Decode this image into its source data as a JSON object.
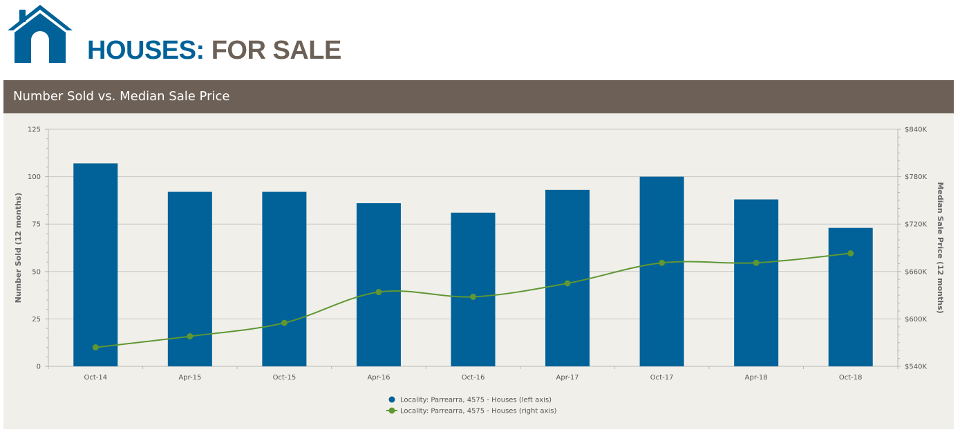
{
  "header": {
    "brand_part1": "HOUSES:",
    "brand_part2": "FOR SALE",
    "icon": "house-icon",
    "colors": {
      "blue": "#006298",
      "brown": "#6d6157"
    }
  },
  "banner": {
    "title": "Number Sold vs. Median Sale Price"
  },
  "chart_data": {
    "type": "bar",
    "categories": [
      "Oct-14",
      "Apr-15",
      "Oct-15",
      "Apr-16",
      "Oct-16",
      "Apr-17",
      "Oct-17",
      "Apr-18",
      "Oct-18"
    ],
    "series": [
      {
        "name": "Locality: Parrearra, 4575 - Houses (left axis)",
        "type": "bar",
        "axis": "left",
        "color": "#006298",
        "values": [
          107,
          92,
          92,
          86,
          81,
          93,
          100,
          88,
          73
        ]
      },
      {
        "name": "Locality: Parrearra, 4575 - Houses (right axis)",
        "type": "line",
        "axis": "right",
        "color": "#5f9732",
        "values": [
          564000,
          578000,
          595000,
          634000,
          628000,
          645000,
          671000,
          671000,
          683000
        ]
      }
    ],
    "ylabel": "Number Sold (12 months)",
    "ylabel_right": "Median Sale Price (12 months)",
    "ylim": [
      0,
      125
    ],
    "ylim_right": [
      540000,
      840000
    ],
    "yticks": [
      "0",
      "25",
      "50",
      "75",
      "100",
      "125"
    ],
    "yticks_right": [
      "$540K",
      "$600K",
      "$660K",
      "$720K",
      "$780K",
      "$840K"
    ],
    "grid": true,
    "legend_position": "bottom"
  }
}
